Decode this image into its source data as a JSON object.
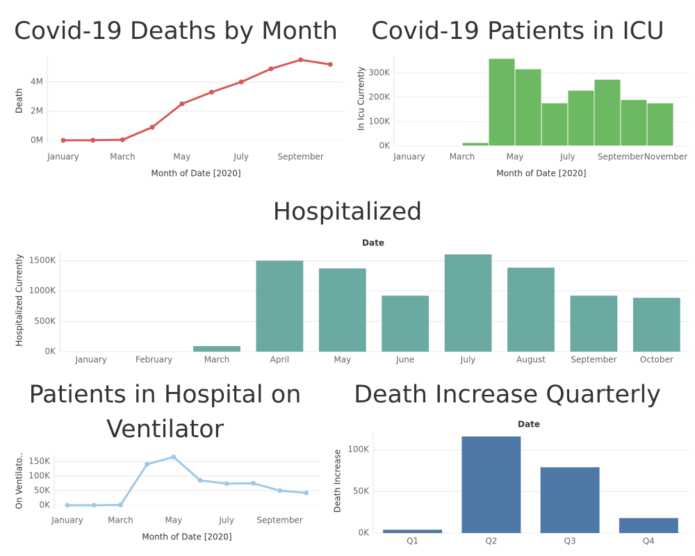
{
  "chart_data": [
    {
      "type": "line",
      "title": "Covid-19 Deaths by Month",
      "color": "#d45a58",
      "categories": [
        "January",
        null,
        "March",
        null,
        "May",
        null,
        "July",
        null,
        "September",
        null
      ],
      "values": [
        2000,
        5000,
        40000,
        900000,
        2500000,
        3300000,
        4000000,
        4900000,
        5520000,
        5200000
      ],
      "ylim": [
        -290000,
        5710000
      ],
      "yticks": [
        {
          "value": 0,
          "label": "0M"
        },
        {
          "value": 2000000,
          "label": "2M"
        },
        {
          "value": 4000000,
          "label": "4M"
        }
      ],
      "ylabel": "Death",
      "xlabel": "Month of Date [2020]",
      "grid": true
    },
    {
      "type": "histogram",
      "title": "Covid-19 Patients in ICU",
      "color": "#6db862",
      "bins": [
        "January",
        null,
        "March",
        null,
        "May",
        null,
        "July",
        null,
        "September",
        null,
        "November"
      ],
      "values": [
        0,
        0,
        14000,
        360000,
        317000,
        177000,
        229000,
        274000,
        191000,
        177000
      ],
      "ylim": [
        0,
        366000
      ],
      "yticks": [
        {
          "value": 0,
          "label": "0K"
        },
        {
          "value": 100000,
          "label": "100K"
        },
        {
          "value": 200000,
          "label": "200K"
        },
        {
          "value": 300000,
          "label": "300K"
        }
      ],
      "ylabel": "In Icu Currently",
      "xlabel": "Month of Date [2020]",
      "grid": true
    },
    {
      "type": "bar",
      "title": "Hospitalized",
      "header": "Date",
      "color": "#6aaaa3",
      "categories": [
        "January",
        "February",
        "March",
        "April",
        "May",
        "June",
        "July",
        "August",
        "September",
        "October"
      ],
      "values": [
        0,
        0,
        92000,
        1500000,
        1373000,
        923000,
        1604000,
        1385000,
        923000,
        889000
      ],
      "ylim": [
        0,
        1650000
      ],
      "yticks": [
        {
          "value": 0,
          "label": "0K"
        },
        {
          "value": 500000,
          "label": "500K"
        },
        {
          "value": 1000000,
          "label": "1000K"
        },
        {
          "value": 1500000,
          "label": "1500K"
        }
      ],
      "ylabel": "Hospitalized Currently",
      "grid": true
    },
    {
      "type": "line",
      "title": "Patients in Hospital on Ventilator",
      "color": "#9ecae4",
      "categories": [
        "January",
        null,
        "March",
        null,
        "May",
        null,
        "July",
        null,
        "September",
        null
      ],
      "values": [
        0,
        0,
        1000,
        140000,
        165000,
        85000,
        74000,
        75000,
        50000,
        42000
      ],
      "ylim": [
        -12000,
        171000
      ],
      "yticks": [
        {
          "value": 0,
          "label": "0K"
        },
        {
          "value": 50000,
          "label": "50K"
        },
        {
          "value": 100000,
          "label": "100K"
        },
        {
          "value": 150000,
          "label": "150K"
        }
      ],
      "ylabel": "On Ventilato..",
      "xlabel": "Month of Date [2020]",
      "grid": true
    },
    {
      "type": "bar",
      "title": "Death Increase Quarterly",
      "header": "Date",
      "color": "#4e79a7",
      "categories": [
        "Q1",
        "Q2",
        "Q3",
        "Q4"
      ],
      "values": [
        4000,
        116000,
        79000,
        18000
      ],
      "ylim": [
        0,
        121000
      ],
      "yticks": [
        {
          "value": 0,
          "label": "0K"
        },
        {
          "value": 50000,
          "label": "50K"
        },
        {
          "value": 100000,
          "label": "100K"
        }
      ],
      "ylabel": "Death Increase",
      "grid": true
    }
  ]
}
